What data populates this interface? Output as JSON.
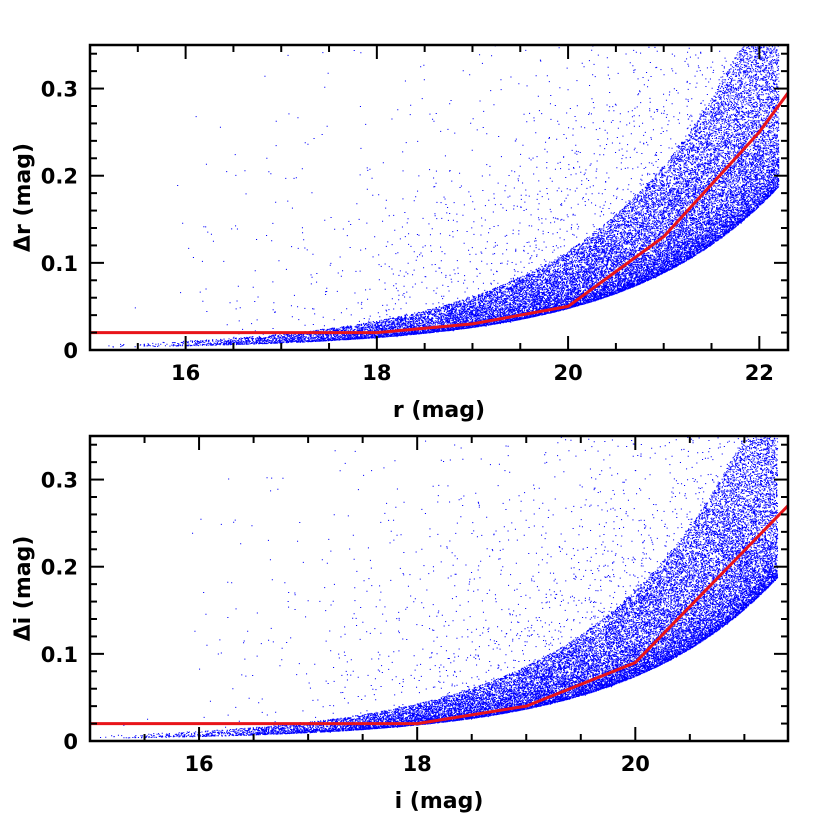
{
  "chart_data": [
    {
      "type": "scatter",
      "xlabel": "r (mag)",
      "ylabel": "Δr (mag)",
      "xlim": [
        15,
        22.3
      ],
      "ylim": [
        0,
        0.35
      ],
      "x_ticks": [
        16,
        18,
        20,
        22
      ],
      "y_ticks": [
        0,
        0.1,
        0.2,
        0.3
      ],
      "y_tick_labels": [
        "0",
        "0.1",
        "0.2",
        "0.3"
      ],
      "grid": false,
      "points_color": "#0000ff",
      "points_description_range_x": [
        15,
        22.2
      ],
      "threshold_line": {
        "color": "#e8141a",
        "x": [
          15,
          18,
          19,
          20,
          21,
          22,
          22.3
        ],
        "y": [
          0.02,
          0.02,
          0.03,
          0.05,
          0.13,
          0.25,
          0.295
        ]
      }
    },
    {
      "type": "scatter",
      "xlabel": "i (mag)",
      "ylabel": "Δi (mag)",
      "xlim": [
        15,
        21.4
      ],
      "ylim": [
        0,
        0.35
      ],
      "x_ticks": [
        16,
        18,
        20
      ],
      "y_ticks": [
        0,
        0.1,
        0.2,
        0.3
      ],
      "y_tick_labels": [
        "0",
        "0.1",
        "0.2",
        "0.3"
      ],
      "grid": false,
      "points_color": "#0000ff",
      "points_description_range_x": [
        15,
        21.3
      ],
      "threshold_line": {
        "color": "#e8141a",
        "x": [
          15,
          18,
          19,
          20,
          21.4
        ],
        "y": [
          0.02,
          0.02,
          0.04,
          0.09,
          0.27
        ]
      }
    }
  ]
}
